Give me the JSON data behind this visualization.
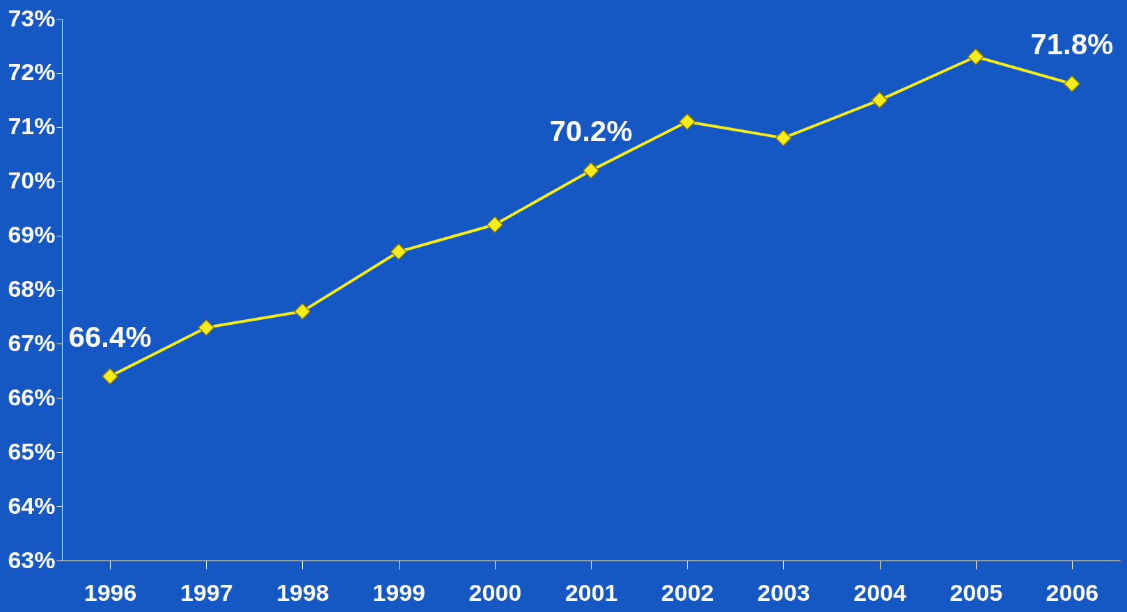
{
  "chart_data": {
    "type": "line",
    "categories": [
      "1996",
      "1997",
      "1998",
      "1999",
      "2000",
      "2001",
      "2002",
      "2003",
      "2004",
      "2005",
      "2006"
    ],
    "series": [
      {
        "color": "#f5ec1e",
        "values": [
          66.4,
          67.3,
          67.6,
          68.7,
          69.2,
          70.2,
          71.1,
          70.8,
          71.5,
          72.3,
          71.8
        ],
        "value_labels": [
          "66.4%",
          null,
          null,
          null,
          null,
          "70.2%",
          null,
          null,
          null,
          null,
          "71.8%"
        ]
      }
    ],
    "ylim": [
      63,
      73
    ],
    "yticks": [
      {
        "value": 63,
        "label": "63%"
      },
      {
        "value": 64,
        "label": "64%"
      },
      {
        "value": 65,
        "label": "65%"
      },
      {
        "value": 66,
        "label": "66%"
      },
      {
        "value": 67,
        "label": "67%"
      },
      {
        "value": 68,
        "label": "68%"
      },
      {
        "value": 69,
        "label": "69%"
      },
      {
        "value": 70,
        "label": "70%"
      },
      {
        "value": 71,
        "label": "71%"
      },
      {
        "value": 72,
        "label": "72%"
      },
      {
        "value": 73,
        "label": "73%"
      }
    ],
    "grid": false,
    "marker": "diamond",
    "line_style": "solid"
  }
}
